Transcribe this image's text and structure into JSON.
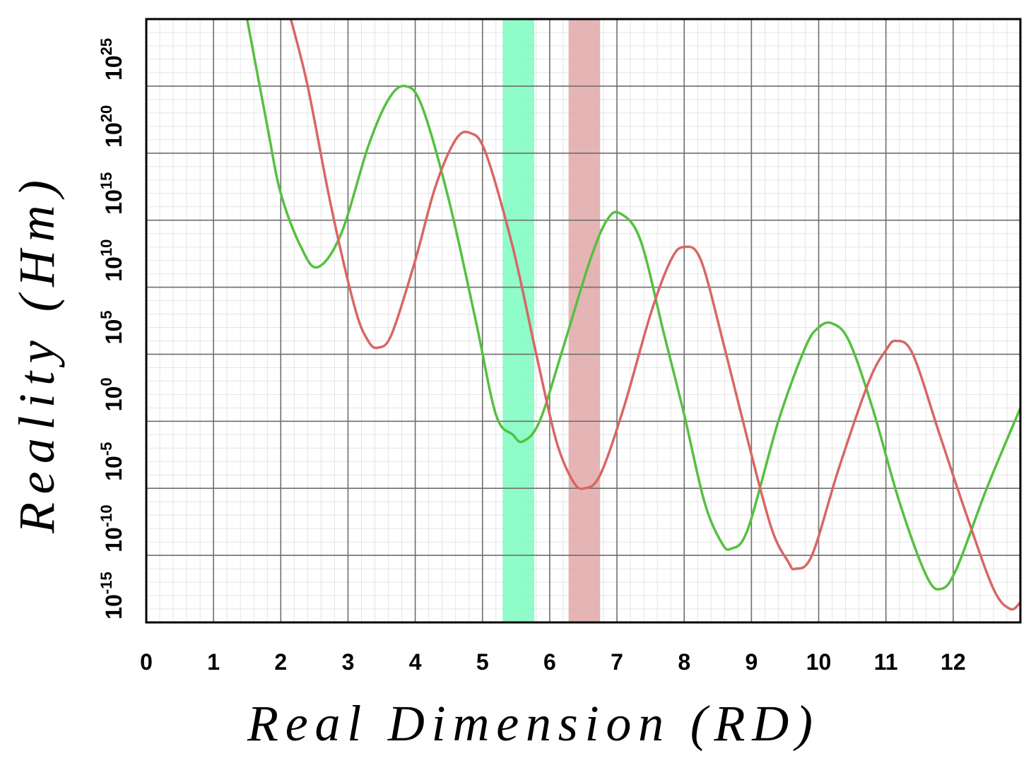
{
  "chart_data": {
    "type": "line",
    "title": "",
    "xlabel": "Real Dimension (RD)",
    "ylabel": "Reality (Hm)",
    "xlim": [
      0,
      13
    ],
    "ylim_log10": [
      -15,
      30
    ],
    "y_scale": "log",
    "grid": true,
    "x_ticks": [
      "0",
      "1",
      "2",
      "3",
      "4",
      "5",
      "6",
      "7",
      "8",
      "9",
      "10",
      "11",
      "12"
    ],
    "y_ticks": [
      {
        "base": "10",
        "exp": "-15",
        "log10": -15
      },
      {
        "base": "10",
        "exp": "-10",
        "log10": -10
      },
      {
        "base": "10",
        "exp": "-5",
        "log10": -5
      },
      {
        "base": "10",
        "exp": "0",
        "log10": 0
      },
      {
        "base": "10",
        "exp": "5",
        "log10": 5
      },
      {
        "base": "10",
        "exp": "10",
        "log10": 10
      },
      {
        "base": "10",
        "exp": "15",
        "log10": 15
      },
      {
        "base": "10",
        "exp": "20",
        "log10": 20
      },
      {
        "base": "10",
        "exp": "25",
        "log10": 25
      }
    ],
    "bands": [
      {
        "x_range": [
          5.3,
          5.77
        ],
        "color": "#7dfcc0"
      },
      {
        "x_range": [
          6.28,
          6.75
        ],
        "color": "#e0a8a8"
      }
    ],
    "series": [
      {
        "color": "#56c040",
        "points": [
          [
            1.5,
            30.0
          ],
          [
            1.8,
            22.0
          ],
          [
            2.0,
            17.0
          ],
          [
            2.3,
            13.0
          ],
          [
            2.55,
            11.5
          ],
          [
            2.9,
            14.0
          ],
          [
            3.3,
            20.5
          ],
          [
            3.6,
            24.0
          ],
          [
            3.85,
            25.0
          ],
          [
            4.1,
            23.5
          ],
          [
            4.5,
            16.5
          ],
          [
            4.9,
            7.5
          ],
          [
            5.2,
            0.5
          ],
          [
            5.45,
            -1.0
          ],
          [
            5.6,
            -1.5
          ],
          [
            5.85,
            0.0
          ],
          [
            6.2,
            5.5
          ],
          [
            6.6,
            12.0
          ],
          [
            6.85,
            15.0
          ],
          [
            7.05,
            15.5
          ],
          [
            7.35,
            13.5
          ],
          [
            7.7,
            6.5
          ],
          [
            8.0,
            0.5
          ],
          [
            8.3,
            -6.0
          ],
          [
            8.55,
            -9.0
          ],
          [
            8.7,
            -9.5
          ],
          [
            8.95,
            -8.0
          ],
          [
            9.4,
            0.0
          ],
          [
            9.8,
            5.5
          ],
          [
            10.0,
            7.0
          ],
          [
            10.2,
            7.3
          ],
          [
            10.45,
            6.0
          ],
          [
            10.8,
            1.0
          ],
          [
            11.2,
            -6.0
          ],
          [
            11.6,
            -11.5
          ],
          [
            11.82,
            -12.5
          ],
          [
            12.05,
            -11.0
          ],
          [
            12.5,
            -5.0
          ],
          [
            13.0,
            1.0
          ]
        ]
      },
      {
        "color": "#d96666",
        "points": [
          [
            2.15,
            30.0
          ],
          [
            2.4,
            25.0
          ],
          [
            2.75,
            16.0
          ],
          [
            3.1,
            8.5
          ],
          [
            3.3,
            6.0
          ],
          [
            3.45,
            5.5
          ],
          [
            3.65,
            6.5
          ],
          [
            4.0,
            12.0
          ],
          [
            4.3,
            17.5
          ],
          [
            4.6,
            21.0
          ],
          [
            4.82,
            21.5
          ],
          [
            5.05,
            20.0
          ],
          [
            5.45,
            13.0
          ],
          [
            5.8,
            5.0
          ],
          [
            6.1,
            -1.5
          ],
          [
            6.35,
            -4.5
          ],
          [
            6.52,
            -5.0
          ],
          [
            6.75,
            -4.0
          ],
          [
            7.1,
            1.0
          ],
          [
            7.5,
            8.0
          ],
          [
            7.8,
            12.0
          ],
          [
            8.0,
            13.0
          ],
          [
            8.25,
            12.0
          ],
          [
            8.6,
            5.5
          ],
          [
            8.95,
            -1.5
          ],
          [
            9.3,
            -8.0
          ],
          [
            9.55,
            -10.5
          ],
          [
            9.65,
            -11.0
          ],
          [
            9.9,
            -10.0
          ],
          [
            10.3,
            -3.5
          ],
          [
            10.75,
            3.0
          ],
          [
            11.0,
            5.3
          ],
          [
            11.15,
            6.0
          ],
          [
            11.4,
            5.0
          ],
          [
            11.8,
            -1.0
          ],
          [
            12.2,
            -7.0
          ],
          [
            12.6,
            -12.5
          ],
          [
            12.85,
            -14.0
          ],
          [
            13.0,
            -13.5
          ]
        ]
      }
    ]
  }
}
